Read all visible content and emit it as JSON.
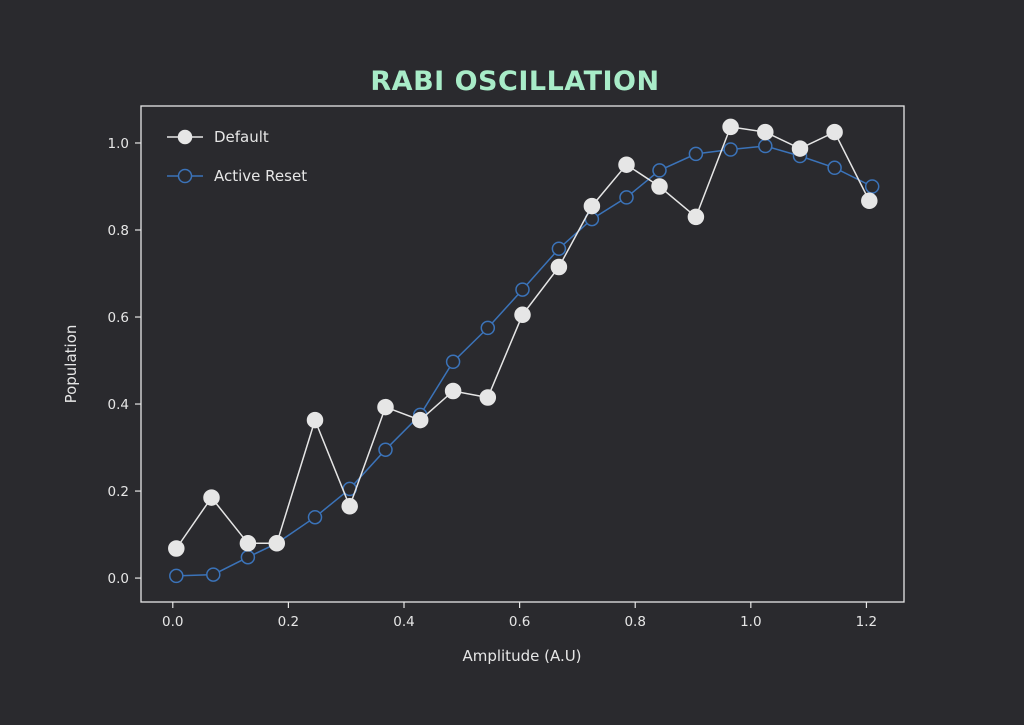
{
  "chart_data": {
    "type": "line",
    "title": "RABI OSCILLATION",
    "xlabel": "Amplitude (A.U)",
    "ylabel": "Population",
    "xlim": [
      -0.055,
      1.265
    ],
    "ylim": [
      -0.055,
      1.085
    ],
    "x_ticks": [
      0.0,
      0.2,
      0.4,
      0.6,
      0.8,
      1.0,
      1.2
    ],
    "x_tick_labels": [
      "0.0",
      "0.2",
      "0.4",
      "0.6",
      "0.8",
      "1.0",
      "1.2"
    ],
    "y_ticks": [
      0.0,
      0.2,
      0.4,
      0.6,
      0.8,
      1.0
    ],
    "y_tick_labels": [
      "0.0",
      "0.2",
      "0.4",
      "0.6",
      "0.8",
      "1.0"
    ],
    "grid": false,
    "legend_position": "top-left",
    "series": [
      {
        "name": "Default",
        "color": "#e6e6e6",
        "marker": "filled-circle",
        "x": [
          0.006,
          0.067,
          0.13,
          0.18,
          0.246,
          0.306,
          0.368,
          0.428,
          0.485,
          0.545,
          0.605,
          0.668,
          0.725,
          0.785,
          0.842,
          0.905,
          0.965,
          1.025,
          1.085,
          1.145,
          1.205
        ],
        "y": [
          0.068,
          0.185,
          0.08,
          0.08,
          0.363,
          0.165,
          0.393,
          0.363,
          0.43,
          0.415,
          0.605,
          0.715,
          0.855,
          0.95,
          0.9,
          0.83,
          1.037,
          1.025,
          0.987,
          1.025,
          0.867
        ]
      },
      {
        "name": "Active Reset",
        "color": "#3b73b9",
        "marker": "open-circle",
        "x": [
          0.006,
          0.07,
          0.13,
          0.18,
          0.246,
          0.306,
          0.368,
          0.428,
          0.485,
          0.545,
          0.605,
          0.668,
          0.725,
          0.785,
          0.842,
          0.905,
          0.965,
          1.025,
          1.085,
          1.145,
          1.21
        ],
        "y": [
          0.005,
          0.008,
          0.048,
          0.08,
          0.14,
          0.205,
          0.295,
          0.375,
          0.497,
          0.575,
          0.663,
          0.757,
          0.825,
          0.875,
          0.937,
          0.975,
          0.985,
          0.993,
          0.97,
          0.943,
          0.9
        ]
      }
    ]
  },
  "colors": {
    "background": "#2a2a2e",
    "title": "#a8ecc8",
    "axes": "#e6e6e6",
    "text": "#e6e6e6"
  }
}
